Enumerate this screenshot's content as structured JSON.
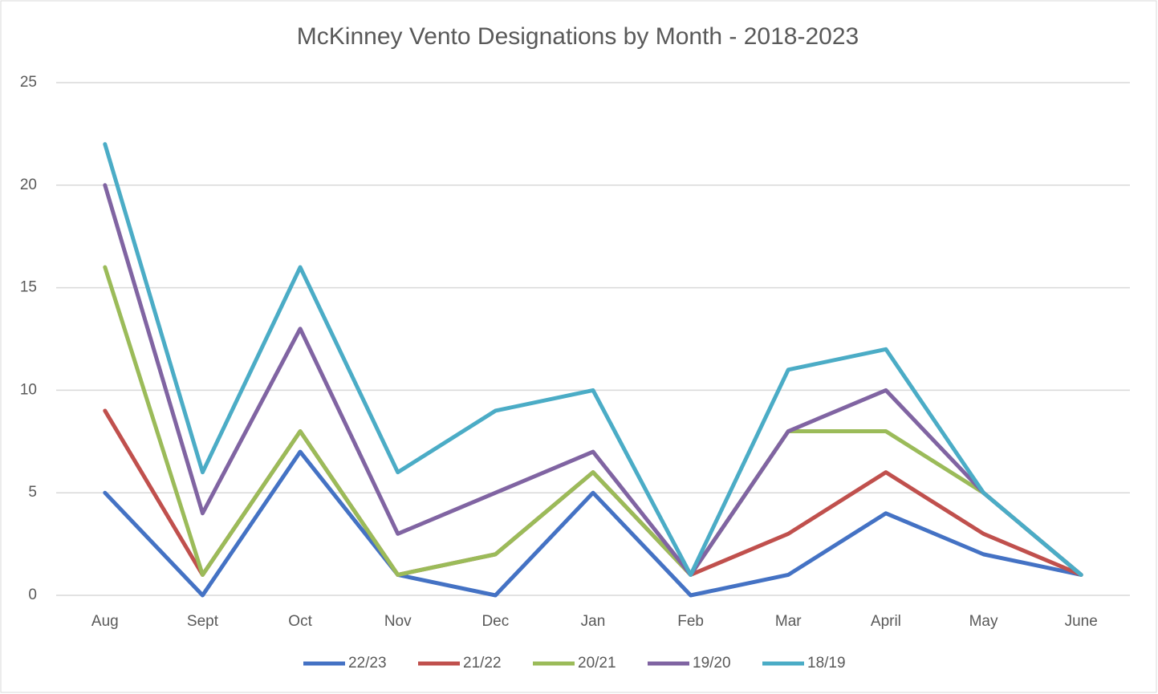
{
  "chart_data": {
    "type": "line",
    "title": "McKinney Vento Designations by Month - 2018-2023",
    "categories": [
      "Aug",
      "Sept",
      "Oct",
      "Nov",
      "Dec",
      "Jan",
      "Feb",
      "Mar",
      "April",
      "May",
      "June"
    ],
    "series": [
      {
        "name": "22/23",
        "color": "#4472c4",
        "values": [
          5,
          0,
          7,
          1,
          0,
          5,
          0,
          1,
          4,
          2,
          1
        ]
      },
      {
        "name": "21/22",
        "color": "#c0504d",
        "values": [
          9,
          1,
          8,
          1,
          2,
          6,
          1,
          3,
          6,
          3,
          1
        ]
      },
      {
        "name": "20/21",
        "color": "#9bbb59",
        "values": [
          16,
          1,
          8,
          1,
          2,
          6,
          1,
          8,
          8,
          5,
          1
        ]
      },
      {
        "name": "19/20",
        "color": "#8064a2",
        "values": [
          20,
          4,
          13,
          3,
          5,
          7,
          1,
          8,
          10,
          5,
          1
        ]
      },
      {
        "name": "18/19",
        "color": "#4bacc6",
        "values": [
          22,
          6,
          16,
          6,
          9,
          10,
          1,
          11,
          12,
          5,
          1
        ]
      }
    ],
    "ylim": [
      0,
      25
    ],
    "yticks": [
      0,
      5,
      10,
      15,
      20,
      25
    ],
    "grid": true,
    "legend": "bottom"
  }
}
